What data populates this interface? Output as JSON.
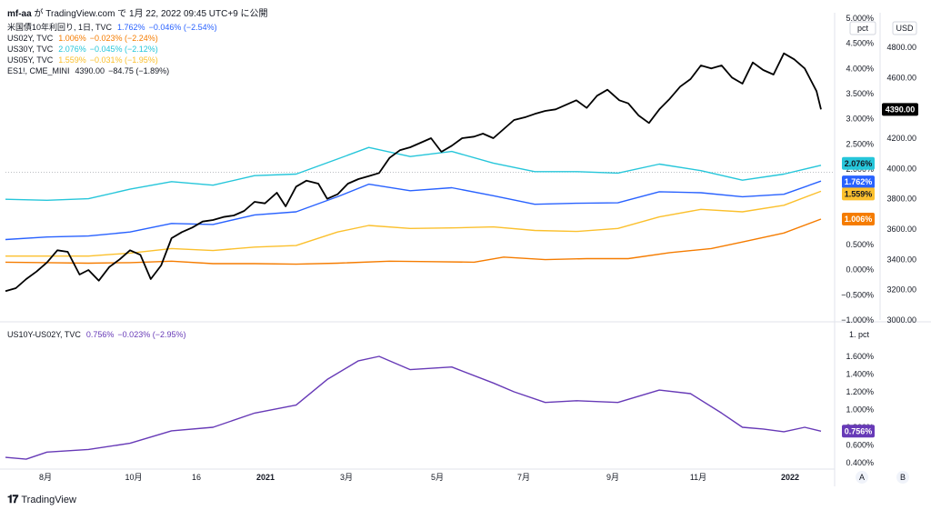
{
  "header": {
    "author": "mf-aa",
    "line": "が TradingView.com で 1月 22, 2022 09:45 UTC+9 に公開"
  },
  "legend_top": [
    {
      "name": "米国債10年利回り, 1日, TVC",
      "value": "1.762%",
      "change": "−0.046% (−2.54%)",
      "color": "#2962ff"
    },
    {
      "name": "US02Y, TVC",
      "value": "1.006%",
      "change": "−0.023% (−2.24%)",
      "color": "#f57c00"
    },
    {
      "name": "US30Y, TVC",
      "value": "2.076%",
      "change": "−0.045% (−2.12%)",
      "color": "#26c6da"
    },
    {
      "name": "US05Y, TVC",
      "value": "1.559%",
      "change": "−0.031% (−1.95%)",
      "color": "#fbc02d"
    },
    {
      "name": "ES1!, CME_MINI",
      "value": "4390.00",
      "change": "−84.75 (−1.89%)",
      "color": "#131722"
    }
  ],
  "legend_bottom": {
    "name": "US10Y-US02Y, TVC",
    "value": "0.756%",
    "change": "−0.023% (−2.95%)",
    "color": "#673ab7"
  },
  "axis": {
    "pct_unit": "pct",
    "usd_unit": "USD",
    "top_pct_ticks": [
      "5.000%",
      "4.500%",
      "4.000%",
      "3.500%",
      "3.000%",
      "2.500%",
      "2.000%",
      "1.500%",
      "1.000%",
      "0.500%",
      "0.000%",
      "−0.500%",
      "−1.000%"
    ],
    "usd_ticks": [
      "4800.00",
      "4600.00",
      "4400.00",
      "4200.00",
      "4000.00",
      "3800.00",
      "3600.00",
      "3400.00",
      "3200.00",
      "3000.00"
    ],
    "bottom_ticks": [
      "1.600%",
      "1.400%",
      "1.200%",
      "1.000%",
      "0.800%",
      "0.600%",
      "0.400%"
    ],
    "bottom_unit": "1. pct",
    "x_ticks": [
      "8月",
      "10月",
      "16",
      "2021",
      "3月",
      "5月",
      "7月",
      "9月",
      "11月",
      "2022"
    ],
    "scale_buttons": [
      "A",
      "B"
    ]
  },
  "tags": {
    "es": {
      "label": "4390.00",
      "color": "#000000"
    },
    "us30": {
      "label": "2.076%",
      "color": "#26c6da"
    },
    "us10": {
      "label": "1.762%",
      "color": "#2962ff"
    },
    "us05": {
      "label": "1.559%",
      "color": "#fbc02d"
    },
    "us02": {
      "label": "1.006%",
      "color": "#f57c00"
    },
    "spread": {
      "label": "0.756%",
      "color": "#673ab7"
    }
  },
  "footer": {
    "brand": "TradingView"
  },
  "chart_data": [
    {
      "type": "line",
      "title": "",
      "y_left_unit": "pct",
      "y_right_unit": "USD",
      "y_left_range": [
        -1.0,
        5.0
      ],
      "y_right_range": [
        3000,
        4800
      ],
      "x_range": [
        "2020-07-20",
        "2022-01-21"
      ],
      "series": [
        {
          "name": "ES1!",
          "axis": "right",
          "color": "#000000",
          "x": [
            "2020-07-20",
            "2020-07-27",
            "2020-08-03",
            "2020-08-10",
            "2020-08-17",
            "2020-08-24",
            "2020-08-31",
            "2020-09-08",
            "2020-09-14",
            "2020-09-21",
            "2020-09-28",
            "2020-10-05",
            "2020-10-12",
            "2020-10-19",
            "2020-10-26",
            "2020-11-02",
            "2020-11-09",
            "2020-11-16",
            "2020-11-23",
            "2020-11-30",
            "2020-12-07",
            "2020-12-14",
            "2020-12-21",
            "2020-12-28",
            "2021-01-04",
            "2021-01-11",
            "2021-01-19",
            "2021-01-25",
            "2021-02-01",
            "2021-02-08",
            "2021-02-16",
            "2021-02-22",
            "2021-03-01",
            "2021-03-08",
            "2021-03-15",
            "2021-03-22",
            "2021-03-29",
            "2021-04-05",
            "2021-04-12",
            "2021-04-19",
            "2021-04-26",
            "2021-05-03",
            "2021-05-10",
            "2021-05-17",
            "2021-05-24",
            "2021-06-01",
            "2021-06-07",
            "2021-06-14",
            "2021-06-21",
            "2021-06-28",
            "2021-07-06",
            "2021-07-12",
            "2021-07-19",
            "2021-07-26",
            "2021-08-02",
            "2021-08-09",
            "2021-08-16",
            "2021-08-23",
            "2021-08-30",
            "2021-09-07",
            "2021-09-13",
            "2021-09-20",
            "2021-09-27",
            "2021-10-04",
            "2021-10-11",
            "2021-10-18",
            "2021-10-25",
            "2021-11-01",
            "2021-11-08",
            "2021-11-15",
            "2021-11-22",
            "2021-11-29",
            "2021-12-06",
            "2021-12-13",
            "2021-12-20",
            "2021-12-27",
            "2022-01-03",
            "2022-01-10",
            "2022-01-18",
            "2022-01-21"
          ],
          "y": [
            3190,
            3210,
            3270,
            3320,
            3380,
            3460,
            3450,
            3300,
            3330,
            3260,
            3350,
            3400,
            3460,
            3430,
            3270,
            3360,
            3540,
            3580,
            3610,
            3650,
            3660,
            3680,
            3690,
            3720,
            3780,
            3770,
            3840,
            3750,
            3880,
            3920,
            3900,
            3800,
            3830,
            3900,
            3930,
            3950,
            3970,
            4070,
            4120,
            4140,
            4170,
            4200,
            4110,
            4150,
            4200,
            4210,
            4230,
            4200,
            4260,
            4320,
            4340,
            4360,
            4380,
            4390,
            4420,
            4450,
            4400,
            4480,
            4520,
            4450,
            4430,
            4350,
            4300,
            4390,
            4460,
            4540,
            4590,
            4680,
            4660,
            4680,
            4600,
            4560,
            4700,
            4650,
            4620,
            4760,
            4720,
            4660,
            4510,
            4390
          ]
        },
        {
          "name": "US30Y",
          "axis": "left",
          "color": "#26c6da",
          "x": [
            "2020-07-20",
            "2020-08-17",
            "2020-09-14",
            "2020-10-12",
            "2020-11-09",
            "2020-12-07",
            "2021-01-04",
            "2021-02-01",
            "2021-03-01",
            "2021-03-22",
            "2021-04-19",
            "2021-05-17",
            "2021-06-14",
            "2021-07-12",
            "2021-08-09",
            "2021-09-06",
            "2021-10-04",
            "2021-11-01",
            "2021-11-29",
            "2021-12-27",
            "2022-01-21"
          ],
          "y": [
            1.4,
            1.38,
            1.41,
            1.6,
            1.75,
            1.68,
            1.87,
            1.9,
            2.2,
            2.43,
            2.25,
            2.35,
            2.12,
            1.95,
            1.95,
            1.92,
            2.1,
            1.97,
            1.78,
            1.9,
            2.076
          ]
        },
        {
          "name": "米国債10年利回り",
          "axis": "left",
          "color": "#2962ff",
          "x": [
            "2020-07-20",
            "2020-08-17",
            "2020-09-14",
            "2020-10-12",
            "2020-11-09",
            "2020-12-07",
            "2021-01-04",
            "2021-02-01",
            "2021-03-01",
            "2021-03-22",
            "2021-04-19",
            "2021-05-17",
            "2021-06-14",
            "2021-07-12",
            "2021-08-09",
            "2021-09-06",
            "2021-10-04",
            "2021-11-01",
            "2021-11-29",
            "2021-12-27",
            "2022-01-21"
          ],
          "y": [
            0.6,
            0.65,
            0.67,
            0.75,
            0.92,
            0.9,
            1.09,
            1.15,
            1.45,
            1.7,
            1.57,
            1.63,
            1.47,
            1.3,
            1.32,
            1.33,
            1.55,
            1.53,
            1.45,
            1.5,
            1.762
          ]
        },
        {
          "name": "US05Y",
          "axis": "left",
          "color": "#fbc02d",
          "x": [
            "2020-07-20",
            "2020-08-17",
            "2020-09-14",
            "2020-10-12",
            "2020-11-09",
            "2020-12-07",
            "2021-01-04",
            "2021-02-01",
            "2021-03-01",
            "2021-03-22",
            "2021-04-19",
            "2021-05-17",
            "2021-06-14",
            "2021-07-12",
            "2021-08-09",
            "2021-09-06",
            "2021-10-04",
            "2021-11-01",
            "2021-11-29",
            "2021-12-27",
            "2022-01-21"
          ],
          "y": [
            0.27,
            0.27,
            0.27,
            0.33,
            0.42,
            0.38,
            0.45,
            0.48,
            0.75,
            0.88,
            0.82,
            0.83,
            0.85,
            0.78,
            0.76,
            0.82,
            1.05,
            1.2,
            1.15,
            1.28,
            1.559
          ]
        },
        {
          "name": "US02Y",
          "axis": "left",
          "color": "#f57c00",
          "x": [
            "2020-07-20",
            "2020-08-17",
            "2020-09-14",
            "2020-10-12",
            "2020-11-09",
            "2020-12-07",
            "2021-01-04",
            "2021-02-01",
            "2021-03-01",
            "2021-04-05",
            "2021-05-03",
            "2021-06-01",
            "2021-06-21",
            "2021-07-19",
            "2021-08-16",
            "2021-09-13",
            "2021-10-11",
            "2021-11-08",
            "2021-11-29",
            "2021-12-27",
            "2022-01-21"
          ],
          "y": [
            0.15,
            0.14,
            0.13,
            0.14,
            0.17,
            0.12,
            0.12,
            0.11,
            0.13,
            0.17,
            0.16,
            0.15,
            0.25,
            0.2,
            0.22,
            0.22,
            0.34,
            0.42,
            0.55,
            0.73,
            1.006
          ]
        }
      ]
    },
    {
      "type": "line",
      "title": "",
      "y_range": [
        0.4,
        1.7
      ],
      "series": [
        {
          "name": "US10Y-US02Y",
          "color": "#673ab7",
          "x": [
            "2020-07-20",
            "2020-08-03",
            "2020-08-17",
            "2020-09-14",
            "2020-10-12",
            "2020-11-09",
            "2020-12-07",
            "2021-01-04",
            "2021-02-01",
            "2021-02-22",
            "2021-03-15",
            "2021-03-29",
            "2021-04-19",
            "2021-05-17",
            "2021-06-14",
            "2021-06-28",
            "2021-07-19",
            "2021-08-09",
            "2021-09-06",
            "2021-10-04",
            "2021-10-25",
            "2021-11-15",
            "2021-11-29",
            "2021-12-13",
            "2021-12-27",
            "2022-01-10",
            "2022-01-21"
          ],
          "y": [
            0.46,
            0.44,
            0.52,
            0.55,
            0.62,
            0.76,
            0.8,
            0.96,
            1.05,
            1.34,
            1.55,
            1.6,
            1.45,
            1.48,
            1.3,
            1.2,
            1.08,
            1.1,
            1.08,
            1.22,
            1.18,
            0.96,
            0.8,
            0.78,
            0.75,
            0.8,
            0.756
          ]
        }
      ]
    }
  ]
}
